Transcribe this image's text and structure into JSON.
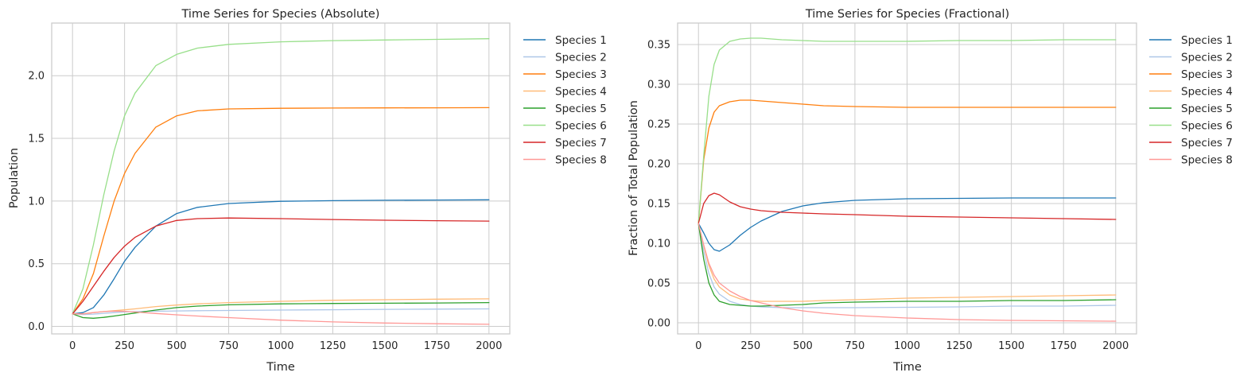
{
  "chart_data": [
    {
      "type": "line",
      "title": "Time Series for Species (Absolute)",
      "xlabel": "Time",
      "ylabel": "Population",
      "xlim": [
        -100,
        2100
      ],
      "ylim": [
        -0.06,
        2.42
      ],
      "xticks": [
        0,
        250,
        500,
        750,
        1000,
        1250,
        1500,
        1750,
        2000
      ],
      "xtick_labels": [
        "0",
        "250",
        "500",
        "750",
        "1000",
        "1250",
        "1500",
        "1750",
        "2000"
      ],
      "yticks": [
        0.0,
        0.5,
        1.0,
        1.5,
        2.0
      ],
      "ytick_labels": [
        "0.0",
        "0.5",
        "1.0",
        "1.5",
        "2.0"
      ],
      "grid": true,
      "legend_position": "outside-right",
      "x": [
        0,
        50,
        100,
        150,
        200,
        250,
        300,
        400,
        500,
        600,
        750,
        1000,
        1250,
        1500,
        1750,
        2000
      ],
      "series": [
        {
          "name": "Species 1",
          "color": "#1f77b4",
          "values": [
            0.1,
            0.11,
            0.15,
            0.25,
            0.38,
            0.52,
            0.63,
            0.8,
            0.9,
            0.95,
            0.98,
            0.998,
            1.003,
            1.006,
            1.008,
            1.01
          ]
        },
        {
          "name": "Species 2",
          "color": "#aec7e8",
          "values": [
            0.1,
            0.095,
            0.098,
            0.104,
            0.11,
            0.115,
            0.118,
            0.121,
            0.123,
            0.125,
            0.127,
            0.13,
            0.133,
            0.136,
            0.138,
            0.14
          ]
        },
        {
          "name": "Species 3",
          "color": "#ff7f0e",
          "values": [
            0.1,
            0.22,
            0.42,
            0.72,
            1.0,
            1.22,
            1.38,
            1.59,
            1.68,
            1.72,
            1.735,
            1.74,
            1.742,
            1.743,
            1.744,
            1.745
          ]
        },
        {
          "name": "Species 4",
          "color": "#ffbb78",
          "values": [
            0.1,
            0.1,
            0.11,
            0.118,
            0.125,
            0.132,
            0.14,
            0.158,
            0.17,
            0.18,
            0.19,
            0.2,
            0.208,
            0.213,
            0.217,
            0.22
          ]
        },
        {
          "name": "Species 5",
          "color": "#2ca02c",
          "values": [
            0.1,
            0.07,
            0.065,
            0.072,
            0.083,
            0.095,
            0.107,
            0.13,
            0.15,
            0.162,
            0.172,
            0.18,
            0.183,
            0.185,
            0.187,
            0.19
          ]
        },
        {
          "name": "Species 6",
          "color": "#98df8a",
          "values": [
            0.1,
            0.3,
            0.65,
            1.05,
            1.4,
            1.68,
            1.86,
            2.08,
            2.17,
            2.22,
            2.25,
            2.27,
            2.28,
            2.285,
            2.29,
            2.295
          ]
        },
        {
          "name": "Species 7",
          "color": "#d62728",
          "values": [
            0.1,
            0.2,
            0.32,
            0.44,
            0.55,
            0.64,
            0.71,
            0.8,
            0.845,
            0.86,
            0.865,
            0.86,
            0.853,
            0.847,
            0.843,
            0.84
          ]
        },
        {
          "name": "Species 8",
          "color": "#ff9896",
          "values": [
            0.1,
            0.1,
            0.11,
            0.118,
            0.122,
            0.12,
            0.115,
            0.103,
            0.092,
            0.083,
            0.07,
            0.05,
            0.036,
            0.027,
            0.021,
            0.017
          ]
        }
      ]
    },
    {
      "type": "line",
      "title": "Time Series for Species (Fractional)",
      "xlabel": "Time",
      "ylabel": "Fraction of Total Population",
      "xlim": [
        -100,
        2100
      ],
      "ylim": [
        -0.014,
        0.377
      ],
      "xticks": [
        0,
        250,
        500,
        750,
        1000,
        1250,
        1500,
        1750,
        2000
      ],
      "xtick_labels": [
        "0",
        "250",
        "500",
        "750",
        "1000",
        "1250",
        "1500",
        "1750",
        "2000"
      ],
      "yticks": [
        0.0,
        0.05,
        0.1,
        0.15,
        0.2,
        0.25,
        0.3,
        0.35
      ],
      "ytick_labels": [
        "0.00",
        "0.05",
        "0.10",
        "0.15",
        "0.20",
        "0.25",
        "0.30",
        "0.35"
      ],
      "grid": true,
      "legend_position": "outside-right",
      "x": [
        0,
        25,
        50,
        75,
        100,
        150,
        200,
        250,
        300,
        400,
        500,
        600,
        750,
        1000,
        1250,
        1500,
        1750,
        2000
      ],
      "series": [
        {
          "name": "Species 1",
          "color": "#1f77b4",
          "values": [
            0.125,
            0.113,
            0.1,
            0.092,
            0.09,
            0.098,
            0.11,
            0.12,
            0.128,
            0.14,
            0.147,
            0.151,
            0.154,
            0.156,
            0.1565,
            0.157,
            0.157,
            0.157
          ]
        },
        {
          "name": "Species 2",
          "color": "#aec7e8",
          "values": [
            0.125,
            0.09,
            0.062,
            0.045,
            0.036,
            0.027,
            0.023,
            0.021,
            0.02,
            0.019,
            0.019,
            0.019,
            0.019,
            0.0195,
            0.02,
            0.021,
            0.021,
            0.022
          ]
        },
        {
          "name": "Species 3",
          "color": "#ff7f0e",
          "values": [
            0.125,
            0.205,
            0.245,
            0.265,
            0.273,
            0.278,
            0.28,
            0.28,
            0.279,
            0.277,
            0.275,
            0.273,
            0.272,
            0.271,
            0.271,
            0.271,
            0.271,
            0.271
          ]
        },
        {
          "name": "Species 4",
          "color": "#ffbb78",
          "values": [
            0.125,
            0.097,
            0.072,
            0.055,
            0.045,
            0.035,
            0.03,
            0.028,
            0.027,
            0.027,
            0.027,
            0.028,
            0.029,
            0.031,
            0.032,
            0.033,
            0.034,
            0.035
          ]
        },
        {
          "name": "Species 5",
          "color": "#2ca02c",
          "values": [
            0.125,
            0.08,
            0.05,
            0.035,
            0.027,
            0.023,
            0.022,
            0.021,
            0.021,
            0.022,
            0.023,
            0.025,
            0.026,
            0.027,
            0.027,
            0.028,
            0.028,
            0.029
          ]
        },
        {
          "name": "Species 6",
          "color": "#98df8a",
          "values": [
            0.125,
            0.21,
            0.285,
            0.325,
            0.343,
            0.354,
            0.357,
            0.358,
            0.358,
            0.356,
            0.355,
            0.354,
            0.354,
            0.354,
            0.355,
            0.355,
            0.356,
            0.356
          ]
        },
        {
          "name": "Species 7",
          "color": "#d62728",
          "values": [
            0.125,
            0.15,
            0.16,
            0.163,
            0.161,
            0.152,
            0.146,
            0.143,
            0.141,
            0.139,
            0.138,
            0.137,
            0.136,
            0.134,
            0.133,
            0.132,
            0.131,
            0.13
          ]
        },
        {
          "name": "Species 8",
          "color": "#ff9896",
          "values": [
            0.125,
            0.098,
            0.075,
            0.06,
            0.05,
            0.04,
            0.033,
            0.028,
            0.025,
            0.019,
            0.015,
            0.012,
            0.009,
            0.006,
            0.004,
            0.003,
            0.0025,
            0.002
          ]
        }
      ]
    }
  ]
}
